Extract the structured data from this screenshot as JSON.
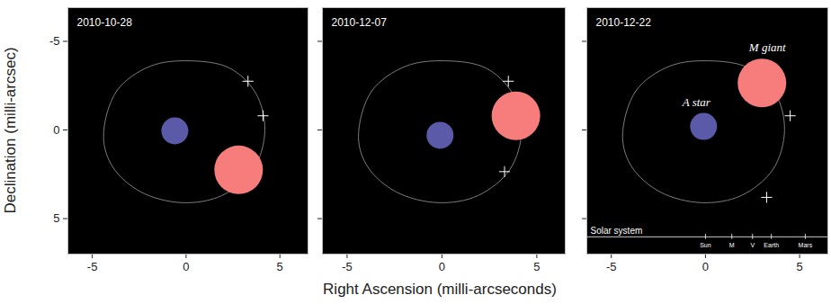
{
  "chart_data": [
    {
      "type": "scatter",
      "title": "2010-10-28",
      "ylabel": "Declination (milli-arcsec)",
      "xlim": [
        -6.3,
        6.5
      ],
      "ylim": [
        7.0,
        -6.9
      ],
      "xticks": [
        -5,
        0,
        5
      ],
      "yticks": [
        -5,
        0,
        5
      ],
      "orbit": {
        "x": [
          -4.4,
          -3.7,
          -1.9,
          0.2,
          2.3,
          3.7,
          4.2,
          3.6,
          1.9,
          -0.2,
          -2.4,
          -3.9
        ],
        "y": [
          0.4,
          -2.2,
          -3.6,
          -3.9,
          -3.5,
          -2.1,
          0.0,
          2.2,
          3.7,
          4.1,
          3.5,
          2.1
        ]
      },
      "stars": [
        {
          "x": -0.6,
          "y": 0.05,
          "color": "#5a5aa8"
        },
        {
          "x": 2.8,
          "y": 2.25,
          "color": "#f77d7d"
        }
      ],
      "marker": "plus",
      "crosses": {
        "x": [
          3.3,
          4.1
        ],
        "y": [
          -2.75,
          -0.8
        ]
      }
    },
    {
      "type": "scatter",
      "title": "2010-12-07",
      "xlabel": "Right Ascension (milli-arcseconds)",
      "xlim": [
        -6.3,
        6.5
      ],
      "ylim": [
        7.0,
        -6.9
      ],
      "xticks": [
        -5,
        0,
        5
      ],
      "yticks": [
        -5,
        0,
        5
      ],
      "tick_labels": "x",
      "orbit": {
        "x": [
          -4.4,
          -3.7,
          -1.9,
          0.2,
          2.3,
          3.7,
          4.2,
          3.6,
          1.9,
          -0.2,
          -2.4,
          -3.9
        ],
        "y": [
          0.4,
          -2.2,
          -3.6,
          -3.9,
          -3.5,
          -2.1,
          0.0,
          2.2,
          3.7,
          4.1,
          3.5,
          2.1
        ]
      },
      "stars": [
        {
          "x": -0.1,
          "y": 0.3,
          "color": "#5a5aa8"
        },
        {
          "x": 3.9,
          "y": -0.8,
          "color": "#f77d7d"
        }
      ],
      "marker": "plus",
      "crosses": {
        "x": [
          3.5,
          3.3
        ],
        "y": [
          -2.75,
          2.35
        ]
      }
    },
    {
      "type": "scatter",
      "title": "2010-12-22",
      "xlim": [
        -6.3,
        6.5
      ],
      "ylim": [
        7.0,
        -6.9
      ],
      "xticks": [
        -5,
        0,
        5
      ],
      "yticks": [
        -5,
        0,
        5
      ],
      "tick_labels": "x",
      "orbit": {
        "x": [
          -4.4,
          -3.7,
          -1.9,
          0.2,
          2.3,
          3.7,
          4.2,
          3.6,
          1.9,
          -0.2,
          -2.4,
          -3.9
        ],
        "y": [
          0.4,
          -2.2,
          -3.6,
          -3.9,
          -3.5,
          -2.1,
          0.0,
          2.2,
          3.7,
          4.1,
          3.5,
          2.1
        ]
      },
      "stars": [
        {
          "x": -0.1,
          "y": -0.2,
          "color": "#5a5aa8",
          "label": "A star"
        },
        {
          "x": 3.0,
          "y": -2.65,
          "color": "#f77d7d",
          "label": "M giant"
        }
      ],
      "marker": "plus",
      "crosses": {
        "x": [
          4.5,
          3.25
        ],
        "y": [
          -0.8,
          3.8
        ]
      },
      "scale_bar": {
        "label": "Solar system",
        "marks": [
          {
            "label": "Sun",
            "value": 0
          },
          {
            "label": "M",
            "value": 1.4
          },
          {
            "label": "V",
            "value": 2.5
          },
          {
            "label": "Earth",
            "value": 3.5
          },
          {
            "label": "Mars",
            "value": 5.3
          }
        ]
      }
    }
  ]
}
